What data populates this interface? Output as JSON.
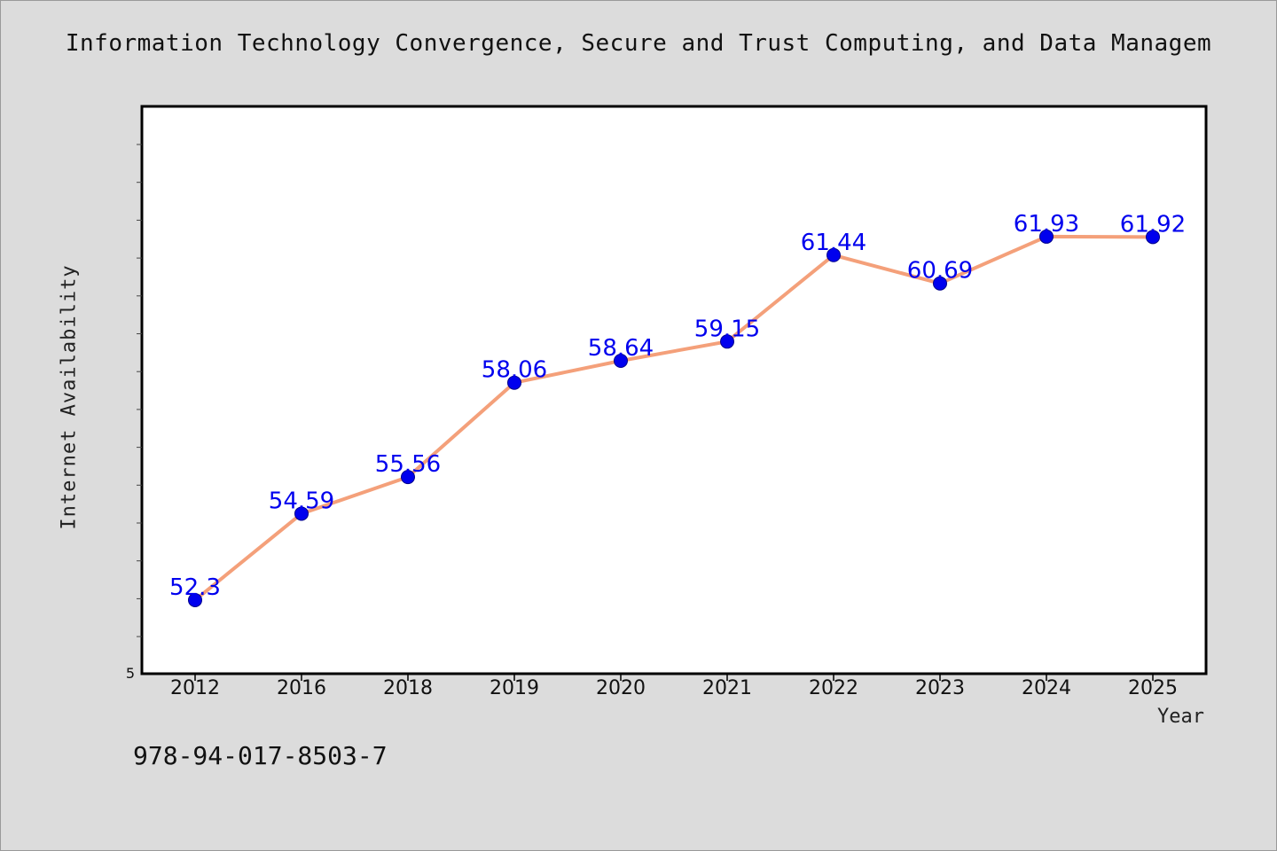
{
  "chart_data": {
    "type": "line",
    "title": "Information Technology Convergence, Secure and Trust Computing, and Data Managem",
    "xlabel": "Year",
    "ylabel": "Internet Availability",
    "categories": [
      "2012",
      "2016",
      "2018",
      "2019",
      "2020",
      "2021",
      "2022",
      "2023",
      "2024",
      "2025"
    ],
    "series": [
      {
        "values": [
          52.3,
          54.59,
          55.56,
          58.06,
          58.64,
          59.15,
          61.44,
          60.69,
          61.93,
          61.92
        ],
        "labels": [
          "52.3",
          "54.59",
          "55.56",
          "58.06",
          "58.64",
          "59.15",
          "61.44",
          "60.69",
          "61.93",
          "61.92"
        ]
      }
    ],
    "ylim": [
      50.35,
      65.38
    ],
    "y_tick_labels": [
      "5"
    ],
    "grid": false,
    "line_color": "#f4a07a",
    "marker_color": "#0000ee",
    "label_color": "#0000ee"
  },
  "footer": {
    "isbn": "978-94-017-8503-7"
  }
}
